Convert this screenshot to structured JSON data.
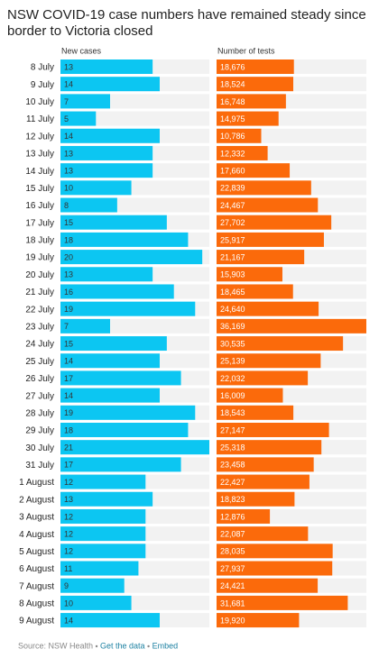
{
  "chart_data": {
    "type": "bar",
    "title": "NSW COVID-19 case numbers have remained steady since border to Victoria closed",
    "categories": [
      "8 July",
      "9 July",
      "10 July",
      "11 July",
      "12 July",
      "13 July",
      "14 July",
      "15 July",
      "16 July",
      "17 July",
      "18 July",
      "19 July",
      "20 July",
      "21 July",
      "22 July",
      "23 July",
      "24 July",
      "25 July",
      "26 July",
      "27 July",
      "28 July",
      "29 July",
      "30 July",
      "31 July",
      "1 August",
      "2 August",
      "3 August",
      "4 August",
      "5 August",
      "6 August",
      "7 August",
      "8 August",
      "9 August"
    ],
    "series": [
      {
        "name": "New cases",
        "color": "#0cc6f2",
        "values": [
          13,
          14,
          7,
          5,
          14,
          13,
          13,
          10,
          8,
          15,
          18,
          20,
          13,
          16,
          19,
          7,
          15,
          14,
          17,
          14,
          19,
          18,
          21,
          17,
          12,
          13,
          12,
          12,
          12,
          11,
          9,
          10,
          14
        ]
      },
      {
        "name": "Number of tests",
        "color": "#fb6a0b",
        "values": [
          18676,
          18524,
          16748,
          14975,
          10786,
          12332,
          17660,
          22839,
          24467,
          27702,
          25917,
          21167,
          15903,
          18465,
          24640,
          36169,
          30535,
          25139,
          22032,
          16009,
          18543,
          27147,
          25318,
          23458,
          22427,
          18823,
          12876,
          22087,
          28035,
          27937,
          24421,
          31681,
          19920
        ],
        "value_labels": [
          "18,676",
          "18,524",
          "16,748",
          "14,975",
          "10,786",
          "12,332",
          "17,660",
          "22,839",
          "24,467",
          "27,702",
          "25,917",
          "21,167",
          "15,903",
          "18,465",
          "24,640",
          "36,169",
          "30,535",
          "25,139",
          "22,032",
          "16,009",
          "18,543",
          "27,147",
          "25,318",
          "23,458",
          "22,427",
          "18,823",
          "12,876",
          "22,087",
          "28,035",
          "27,937",
          "24,421",
          "31,681",
          "19,920"
        ]
      }
    ],
    "source": "Source: NSW Health",
    "links": [
      "Get the data",
      "Embed"
    ]
  }
}
